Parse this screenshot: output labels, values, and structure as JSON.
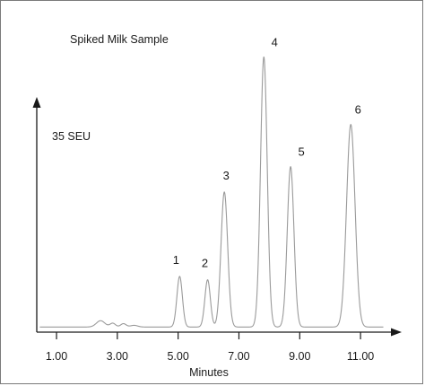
{
  "chart_data": {
    "type": "line",
    "title": "Spiked Milk Sample",
    "y_scale_label": "35 SEU",
    "xlabel": "Minutes",
    "ylabel": "",
    "xlim": [
      0.35,
      12.0
    ],
    "ylim": [
      0,
      35
    ],
    "x_ticks": [
      1.0,
      3.0,
      5.0,
      7.0,
      9.0,
      11.0
    ],
    "x_tick_labels": [
      "1.00",
      "3.00",
      "5.00",
      "7.00",
      "9.00",
      "11.00"
    ],
    "baseline": 0.5,
    "trace_color": "#9a9a9a",
    "axis_color": "#1a1a1a",
    "grid": false,
    "peaks": [
      {
        "label": "1",
        "x": 5.05,
        "height": 6.0,
        "width": 0.09
      },
      {
        "label": "2",
        "x": 5.97,
        "height": 5.6,
        "width": 0.09
      },
      {
        "label": "3",
        "x": 6.52,
        "height": 16.0,
        "width": 0.11
      },
      {
        "label": "4",
        "x": 7.82,
        "height": 32.0,
        "width": 0.11
      },
      {
        "label": "5",
        "x": 8.7,
        "height": 19.0,
        "width": 0.11
      },
      {
        "label": "6",
        "x": 10.68,
        "height": 24.0,
        "width": 0.14
      }
    ],
    "minor_peaks": [
      {
        "x": 2.45,
        "height": 0.75,
        "width": 0.14
      },
      {
        "x": 2.85,
        "height": 0.45,
        "width": 0.09
      },
      {
        "x": 3.2,
        "height": 0.4,
        "width": 0.09
      },
      {
        "x": 3.55,
        "height": 0.2,
        "width": 0.12
      }
    ]
  }
}
